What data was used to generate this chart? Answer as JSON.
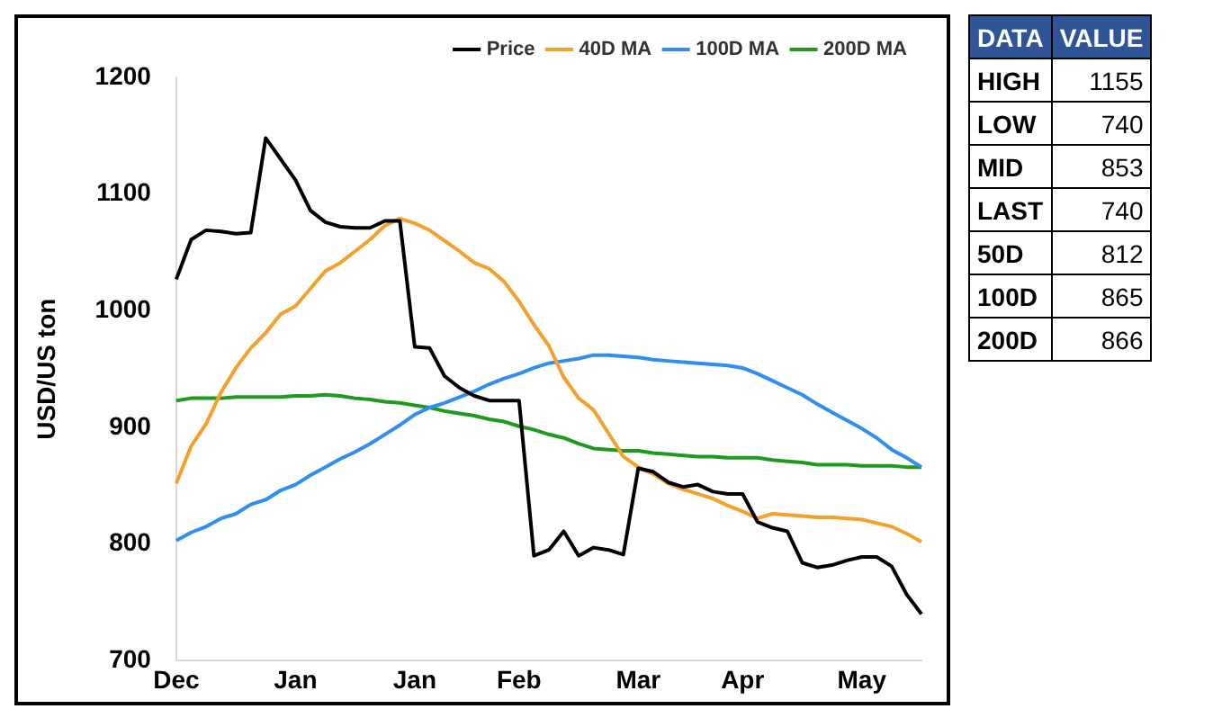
{
  "chart_data": {
    "type": "line",
    "ylabel": "USD/US ton",
    "ylim": [
      700,
      1200
    ],
    "categories": [
      "Dec",
      null,
      null,
      null,
      null,
      null,
      null,
      null,
      "Jan",
      null,
      null,
      null,
      null,
      null,
      null,
      null,
      "Jan",
      null,
      null,
      null,
      null,
      null,
      null,
      "Feb",
      null,
      null,
      null,
      null,
      null,
      null,
      null,
      "Mar",
      null,
      null,
      null,
      null,
      null,
      null,
      "Apr",
      null,
      null,
      null,
      null,
      null,
      null,
      null,
      "May",
      null,
      null,
      null,
      null
    ],
    "yticks": [
      700,
      800,
      900,
      1000,
      1100,
      1200
    ],
    "legend": "top right",
    "marker": "none",
    "line_style": "solid",
    "series": [
      {
        "name": "Price",
        "color": "#000000",
        "values": [
          1027,
          1061,
          1069,
          1068,
          1066,
          1067,
          1148,
          1130,
          1112,
          1086,
          1076,
          1072,
          1071,
          1071,
          1077,
          1077,
          969,
          968,
          944,
          934,
          927,
          923,
          923,
          923,
          790,
          795,
          811,
          790,
          797,
          795,
          791,
          865,
          862,
          853,
          849,
          851,
          845,
          843,
          843,
          819,
          814,
          811,
          784,
          780,
          782,
          786,
          789,
          789,
          781,
          757,
          740
        ]
      },
      {
        "name": "40D MA",
        "color": "#f5a02a",
        "values": [
          852,
          884,
          903,
          930,
          951,
          968,
          981,
          997,
          1004,
          1019,
          1034,
          1041,
          1051,
          1061,
          1073,
          1079,
          1075,
          1069,
          1060,
          1051,
          1041,
          1036,
          1025,
          1008,
          988,
          970,
          943,
          925,
          915,
          895,
          875,
          866,
          860,
          852,
          847,
          843,
          839,
          833,
          828,
          822,
          826,
          825,
          824,
          823,
          823,
          822,
          821,
          818,
          815,
          809,
          802
        ]
      },
      {
        "name": "100D MA",
        "color": "#2f8ef0",
        "values": [
          803,
          810,
          815,
          822,
          826,
          834,
          838,
          846,
          851,
          859,
          866,
          873,
          879,
          886,
          894,
          902,
          911,
          917,
          921,
          926,
          931,
          937,
          942,
          946,
          951,
          955,
          957,
          959,
          962,
          962,
          961,
          960,
          958,
          957,
          956,
          955,
          954,
          953,
          951,
          946,
          940,
          934,
          928,
          920,
          913,
          906,
          899,
          891,
          881,
          874,
          866
        ]
      },
      {
        "name": "200D MA",
        "color": "#1e9a1e",
        "values": [
          923,
          925,
          925,
          925,
          926,
          926,
          926,
          926,
          927,
          927,
          928,
          927,
          925,
          924,
          922,
          921,
          919,
          917,
          914,
          912,
          910,
          907,
          905,
          901,
          898,
          894,
          891,
          886,
          882,
          881,
          880,
          880,
          878,
          877,
          876,
          875,
          875,
          874,
          874,
          874,
          872,
          871,
          870,
          868,
          868,
          868,
          867,
          867,
          867,
          866,
          866
        ]
      }
    ],
    "annotations": [
      "DATA",
      "VALUE",
      "HIGH",
      "1155",
      "LOW",
      "740",
      "MID",
      "853",
      "LAST",
      "740",
      "50D",
      "812",
      "100D",
      "865",
      "200D",
      "866"
    ]
  }
}
